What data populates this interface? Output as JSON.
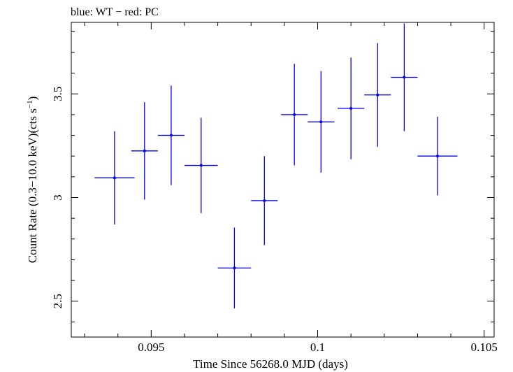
{
  "chart_data": {
    "type": "scatter",
    "title": "blue: WT − red: PC",
    "xlabel": "Time Since 56268.0 MJD (days)",
    "ylabel_main": "Count Rate (0.3−10.0 keV)(cts s",
    "ylabel_sup": "−1",
    "ylabel_close": ")",
    "xlim": [
      0.0926,
      0.1053
    ],
    "ylim": [
      2.327,
      3.845
    ],
    "xticks_major": [
      0.095,
      0.1,
      0.105
    ],
    "xtick_labels": [
      "0.095",
      "0.1",
      "0.105"
    ],
    "xticks_minor": [
      0.093,
      0.094,
      0.096,
      0.097,
      0.098,
      0.099,
      0.101,
      0.102,
      0.103,
      0.104
    ],
    "yticks_major": [
      2.5,
      3,
      3.5
    ],
    "ytick_labels": [
      "2.5",
      "3",
      "3.5"
    ],
    "yticks_minor": [
      2.4,
      2.6,
      2.7,
      2.8,
      2.9,
      3.1,
      3.2,
      3.3,
      3.4,
      3.6,
      3.7,
      3.8
    ],
    "grid": false,
    "series": [
      {
        "color": "#0000ee",
        "points": [
          {
            "x": 0.0939,
            "xerr": 0.0006,
            "y": 3.095,
            "yerr": 0.225
          },
          {
            "x": 0.0948,
            "xerr": 0.0004,
            "y": 3.225,
            "yerr": 0.235
          },
          {
            "x": 0.0956,
            "xerr": 0.0004,
            "y": 3.3,
            "yerr": 0.24
          },
          {
            "x": 0.0965,
            "xerr": 0.0005,
            "y": 3.155,
            "yerr": 0.23
          },
          {
            "x": 0.0975,
            "xerr": 0.0005,
            "y": 2.66,
            "yerr": 0.195
          },
          {
            "x": 0.0984,
            "xerr": 0.0004,
            "y": 2.985,
            "yerr": 0.215
          },
          {
            "x": 0.0993,
            "xerr": 0.0004,
            "y": 3.4,
            "yerr": 0.245
          },
          {
            "x": 0.1001,
            "xerr": 0.0004,
            "y": 3.365,
            "yerr": 0.245
          },
          {
            "x": 0.101,
            "xerr": 0.0004,
            "y": 3.43,
            "yerr": 0.245
          },
          {
            "x": 0.1018,
            "xerr": 0.0004,
            "y": 3.495,
            "yerr": 0.25
          },
          {
            "x": 0.1026,
            "xerr": 0.0004,
            "y": 3.58,
            "yerr": 0.26
          },
          {
            "x": 0.1036,
            "xerr": 0.0006,
            "y": 3.2,
            "yerr": 0.19
          }
        ]
      }
    ]
  }
}
